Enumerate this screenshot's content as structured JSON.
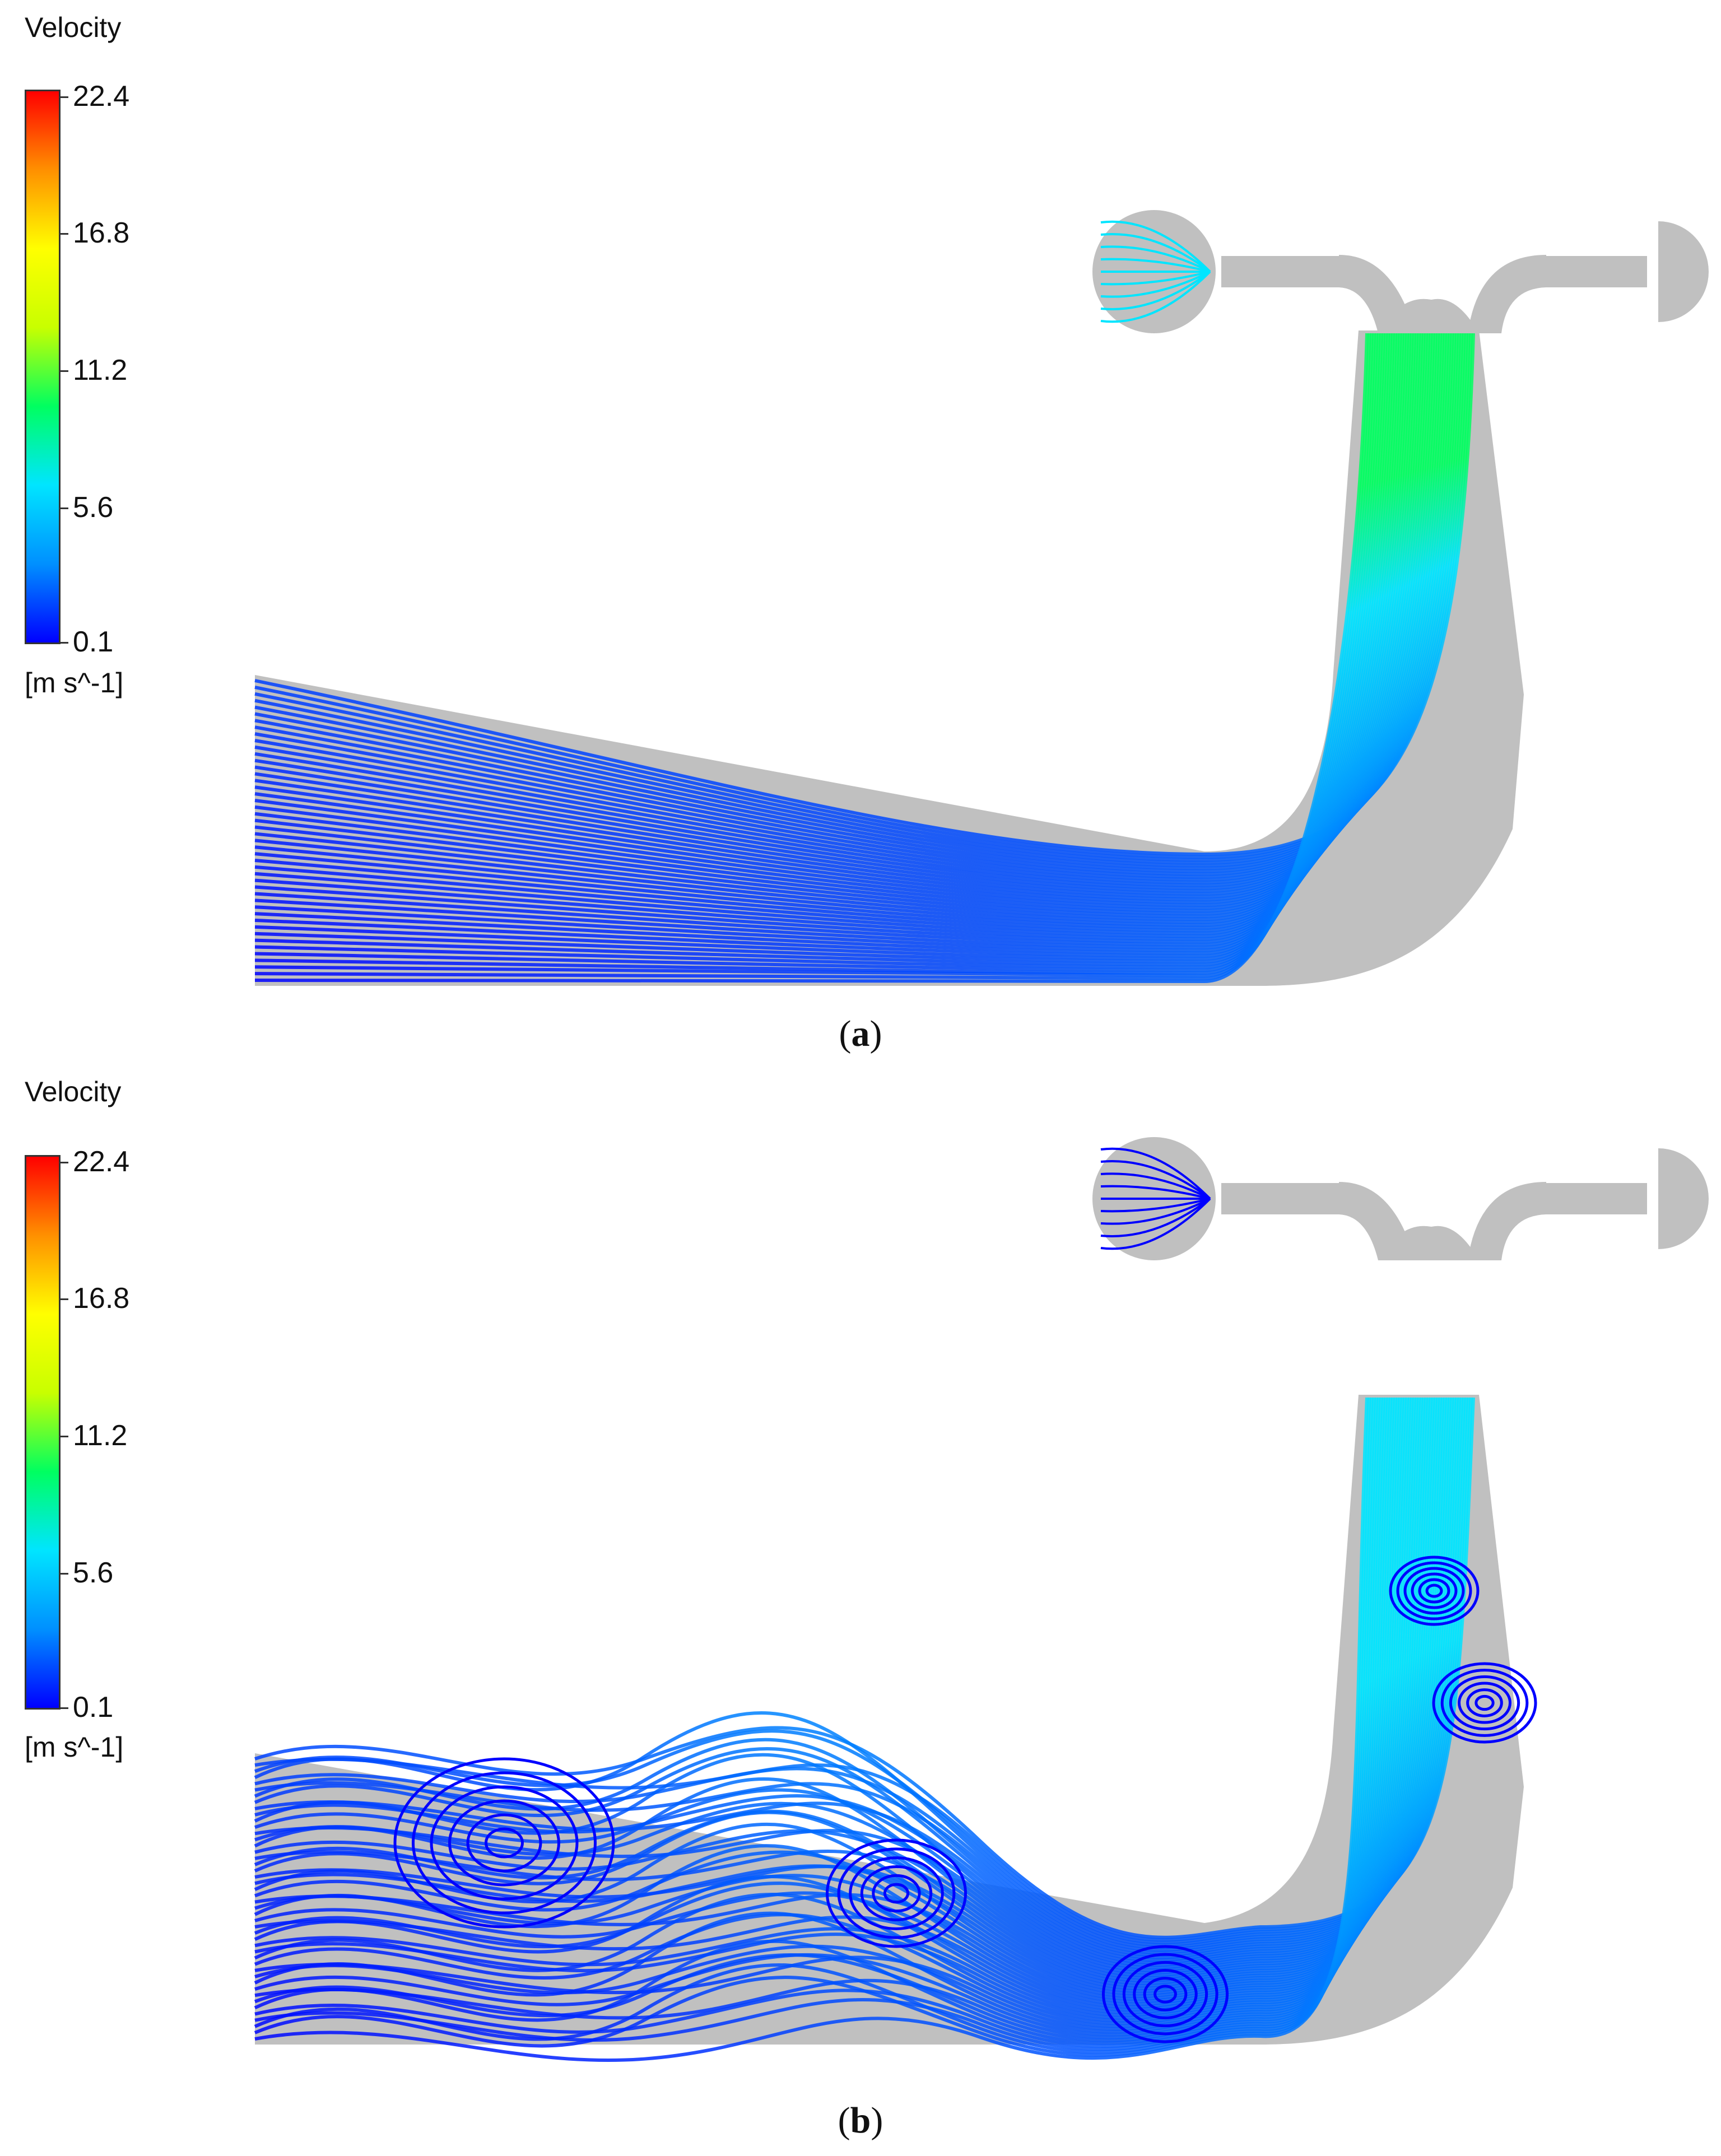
{
  "panels": [
    {
      "id": "a",
      "legend_title": "Velocity",
      "ticks": [
        "22.4",
        "16.8",
        "11.2",
        "5.6",
        "0.1"
      ],
      "unit": "[m s^-1]",
      "caption_open": "(",
      "caption_letter": "a",
      "caption_close": ")"
    },
    {
      "id": "b",
      "legend_title": "Velocity",
      "ticks": [
        "22.4",
        "16.8",
        "11.2",
        "5.6",
        "0.1"
      ],
      "unit": "[m s^-1]",
      "caption_open": "(",
      "caption_letter": "b",
      "caption_close": ")"
    }
  ],
  "colormap": [
    "#0000ff",
    "#0090ff",
    "#00e5ff",
    "#00ff60",
    "#c8ff00",
    "#ffff00",
    "#ff9000",
    "#ff0000"
  ],
  "domain_fill": "#c0c0c0"
}
